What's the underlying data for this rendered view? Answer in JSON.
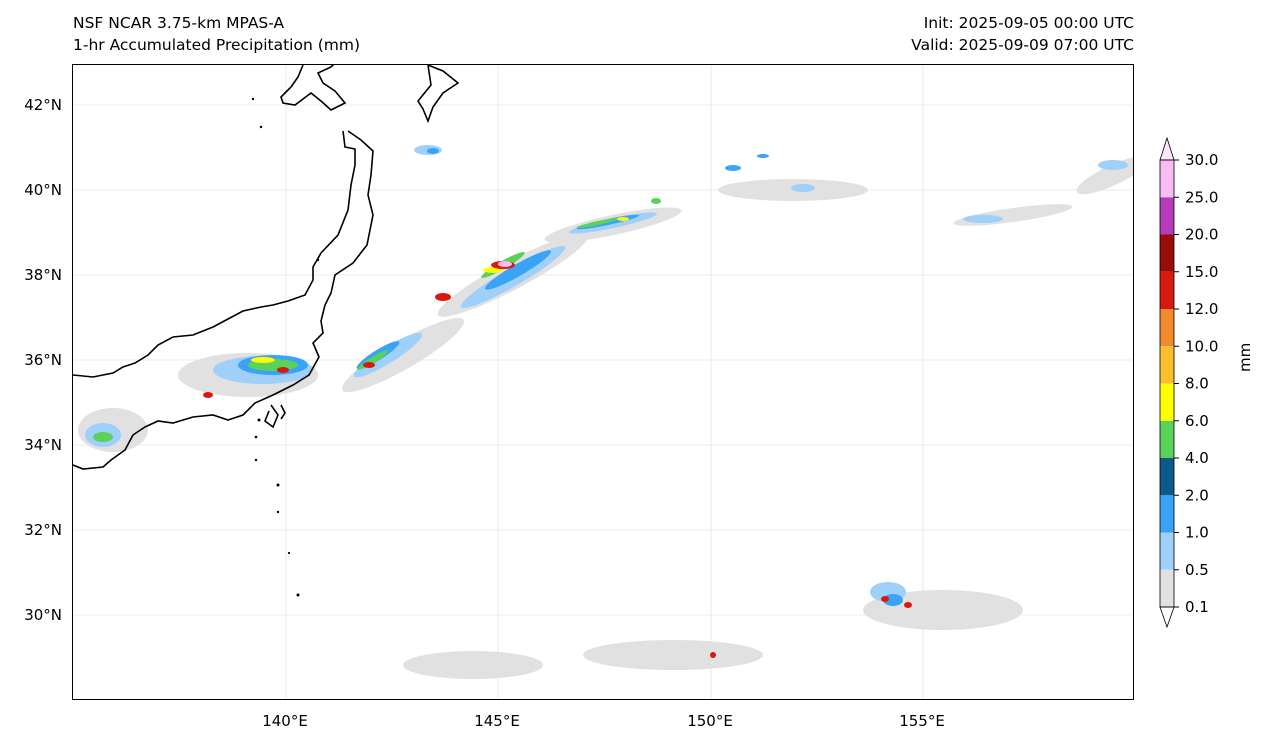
{
  "header": {
    "title_line1": "NSF NCAR 3.75-km MPAS-A",
    "title_line2": "1-hr Accumulated Precipitation (mm)",
    "init": "Init: 2025-09-05 00:00 UTC",
    "valid": "Valid: 2025-09-09 07:00 UTC"
  },
  "axes": {
    "lat_labels": [
      "42°N",
      "40°N",
      "38°N",
      "36°N",
      "34°N",
      "32°N",
      "30°N"
    ],
    "lon_labels": [
      "140°E",
      "145°E",
      "150°E",
      "155°E"
    ],
    "gridlines": true
  },
  "colorbar": {
    "title": "mm",
    "levels": [
      "0.1",
      "0.5",
      "1.0",
      "2.0",
      "4.0",
      "6.0",
      "8.0",
      "10.0",
      "12.0",
      "15.0",
      "20.0",
      "25.0",
      "30.0"
    ],
    "colors": [
      "#e1e1e1",
      "#9fd0fa",
      "#3aa3f6",
      "#0b5a8a",
      "#5ad25a",
      "#ffff00",
      "#fdbe2e",
      "#f08a2c",
      "#d61a10",
      "#9a0c08",
      "#b43cba",
      "#fbbcf5"
    ],
    "extend": "both"
  },
  "colors": {
    "coastline": "#000000",
    "gridline": "#d9d9d9"
  }
}
